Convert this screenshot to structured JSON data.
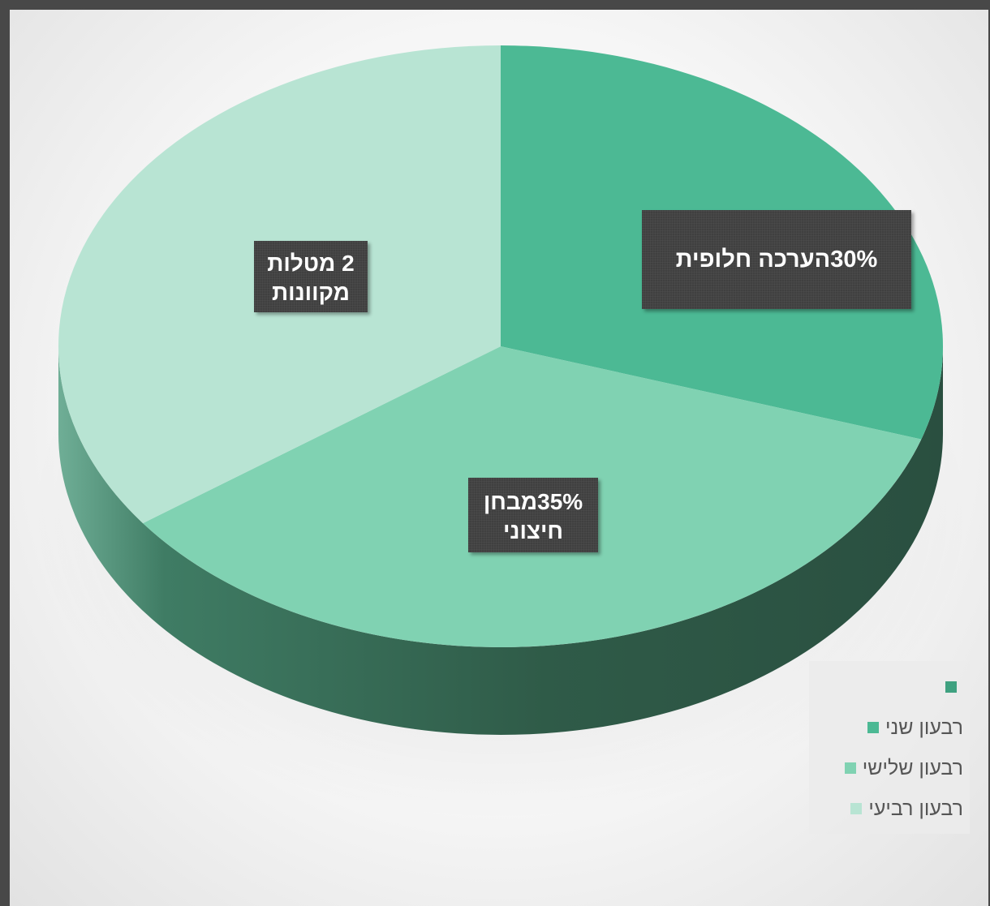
{
  "chart_data": {
    "type": "pie",
    "style": "3d",
    "slices": [
      {
        "label": "הערכה חלופית",
        "value": 30,
        "color": "#4cb994"
      },
      {
        "label": "מבחן חיצוני",
        "value": 35,
        "color": "#80d2b2"
      },
      {
        "label": "מטלות מקוונות",
        "value": 35,
        "color": "#b8e4d3"
      }
    ],
    "data_labels": {
      "alt": "30%הערכה חלופית",
      "exam_line1": "35%מבחן",
      "exam_line2": "חיצוני",
      "tasks_line1": "2 מטלות",
      "tasks_line2": "מקוונות"
    },
    "legend": {
      "position": "bottom-right",
      "entries": [
        {
          "label": "",
          "color": "#3fa180"
        },
        {
          "label": "רבעון שני",
          "color": "#4cb994"
        },
        {
          "label": "רבעון שלישי",
          "color": "#80d2b2"
        },
        {
          "label": "רבעון רביעי",
          "color": "#b8e4d3"
        }
      ]
    }
  }
}
